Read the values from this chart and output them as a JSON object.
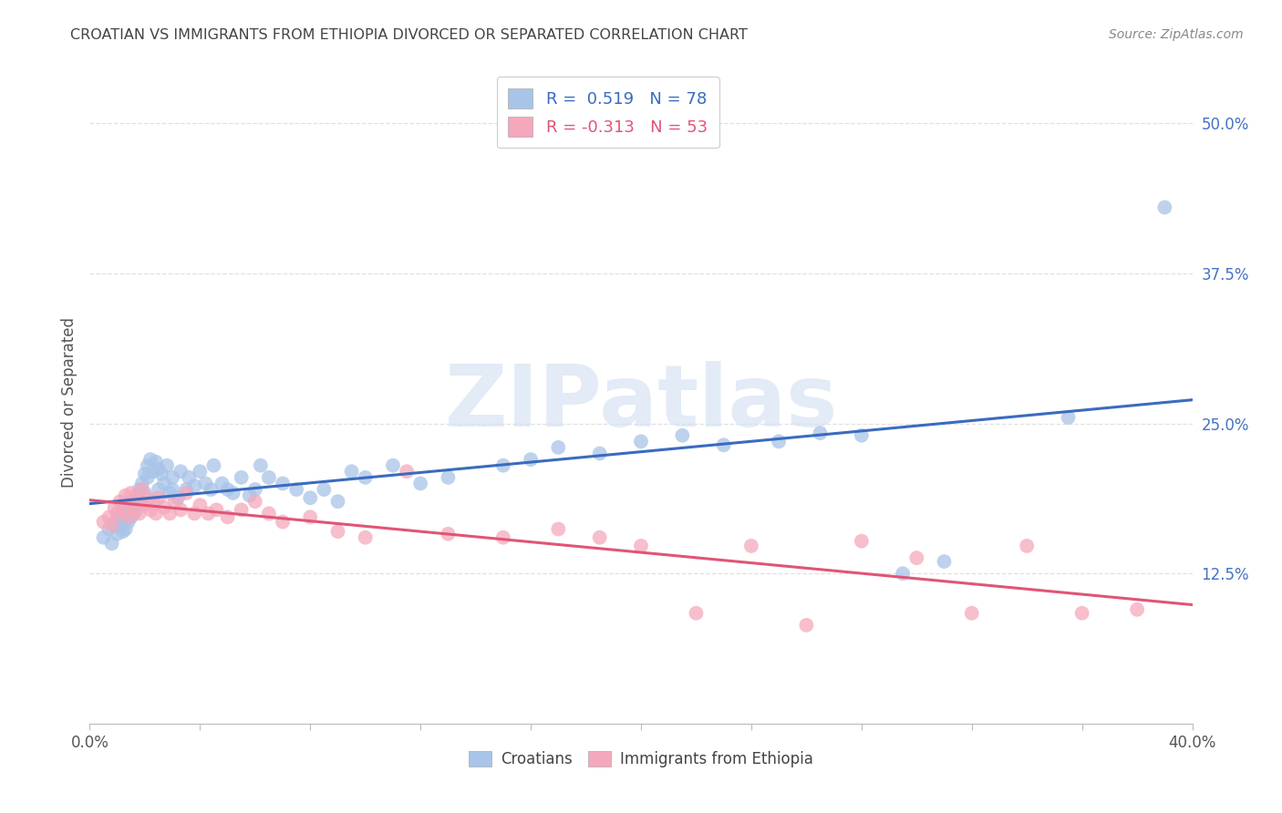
{
  "title": "CROATIAN VS IMMIGRANTS FROM ETHIOPIA DIVORCED OR SEPARATED CORRELATION CHART",
  "source": "Source: ZipAtlas.com",
  "ylabel": "Divorced or Separated",
  "ytick_labels": [
    "12.5%",
    "25.0%",
    "37.5%",
    "50.0%"
  ],
  "ytick_values": [
    0.125,
    0.25,
    0.375,
    0.5
  ],
  "xlim": [
    0.0,
    0.4
  ],
  "ylim": [
    0.0,
    0.535
  ],
  "blue_R": 0.519,
  "blue_N": 78,
  "pink_R": -0.313,
  "pink_N": 53,
  "blue_color": "#a8c4e8",
  "pink_color": "#f5a8bb",
  "blue_line_color": "#3a6bbf",
  "pink_line_color": "#e05575",
  "legend_label_blue": "Croatians",
  "legend_label_pink": "Immigrants from Ethiopia",
  "watermark": "ZIPatlas",
  "blue_scatter_x": [
    0.005,
    0.007,
    0.008,
    0.009,
    0.01,
    0.01,
    0.011,
    0.012,
    0.012,
    0.013,
    0.013,
    0.014,
    0.014,
    0.015,
    0.015,
    0.016,
    0.016,
    0.017,
    0.017,
    0.018,
    0.018,
    0.019,
    0.02,
    0.02,
    0.021,
    0.021,
    0.022,
    0.023,
    0.024,
    0.025,
    0.025,
    0.026,
    0.027,
    0.028,
    0.029,
    0.03,
    0.03,
    0.032,
    0.033,
    0.035,
    0.036,
    0.038,
    0.04,
    0.042,
    0.044,
    0.045,
    0.048,
    0.05,
    0.052,
    0.055,
    0.058,
    0.06,
    0.062,
    0.065,
    0.07,
    0.075,
    0.08,
    0.085,
    0.09,
    0.095,
    0.1,
    0.11,
    0.12,
    0.13,
    0.15,
    0.16,
    0.17,
    0.185,
    0.2,
    0.215,
    0.23,
    0.25,
    0.265,
    0.28,
    0.295,
    0.31,
    0.355,
    0.39
  ],
  "blue_scatter_y": [
    0.155,
    0.162,
    0.15,
    0.165,
    0.158,
    0.17,
    0.165,
    0.16,
    0.175,
    0.162,
    0.17,
    0.175,
    0.168,
    0.18,
    0.172,
    0.185,
    0.175,
    0.19,
    0.178,
    0.195,
    0.185,
    0.2,
    0.192,
    0.208,
    0.215,
    0.205,
    0.22,
    0.21,
    0.218,
    0.195,
    0.212,
    0.208,
    0.2,
    0.215,
    0.192,
    0.205,
    0.195,
    0.188,
    0.21,
    0.195,
    0.205,
    0.198,
    0.21,
    0.2,
    0.195,
    0.215,
    0.2,
    0.195,
    0.192,
    0.205,
    0.19,
    0.195,
    0.215,
    0.205,
    0.2,
    0.195,
    0.188,
    0.195,
    0.185,
    0.21,
    0.205,
    0.215,
    0.2,
    0.205,
    0.215,
    0.22,
    0.23,
    0.225,
    0.235,
    0.24,
    0.232,
    0.235,
    0.242,
    0.24,
    0.125,
    0.135,
    0.255,
    0.43
  ],
  "pink_scatter_x": [
    0.005,
    0.007,
    0.008,
    0.009,
    0.01,
    0.011,
    0.012,
    0.013,
    0.014,
    0.015,
    0.015,
    0.016,
    0.017,
    0.018,
    0.019,
    0.02,
    0.021,
    0.022,
    0.023,
    0.024,
    0.025,
    0.027,
    0.029,
    0.031,
    0.033,
    0.035,
    0.038,
    0.04,
    0.043,
    0.046,
    0.05,
    0.055,
    0.06,
    0.065,
    0.07,
    0.08,
    0.09,
    0.1,
    0.115,
    0.13,
    0.15,
    0.17,
    0.185,
    0.2,
    0.22,
    0.24,
    0.26,
    0.28,
    0.3,
    0.32,
    0.34,
    0.36,
    0.38
  ],
  "pink_scatter_y": [
    0.168,
    0.172,
    0.165,
    0.18,
    0.175,
    0.185,
    0.178,
    0.19,
    0.172,
    0.185,
    0.192,
    0.178,
    0.188,
    0.175,
    0.195,
    0.182,
    0.188,
    0.178,
    0.185,
    0.175,
    0.188,
    0.18,
    0.175,
    0.185,
    0.178,
    0.192,
    0.175,
    0.182,
    0.175,
    0.178,
    0.172,
    0.178,
    0.185,
    0.175,
    0.168,
    0.172,
    0.16,
    0.155,
    0.21,
    0.158,
    0.155,
    0.162,
    0.155,
    0.148,
    0.092,
    0.148,
    0.082,
    0.152,
    0.138,
    0.092,
    0.148,
    0.092,
    0.095
  ],
  "background_color": "#ffffff",
  "grid_color": "#e0e0e0",
  "title_color": "#444444",
  "right_axis_color": "#4472c4"
}
